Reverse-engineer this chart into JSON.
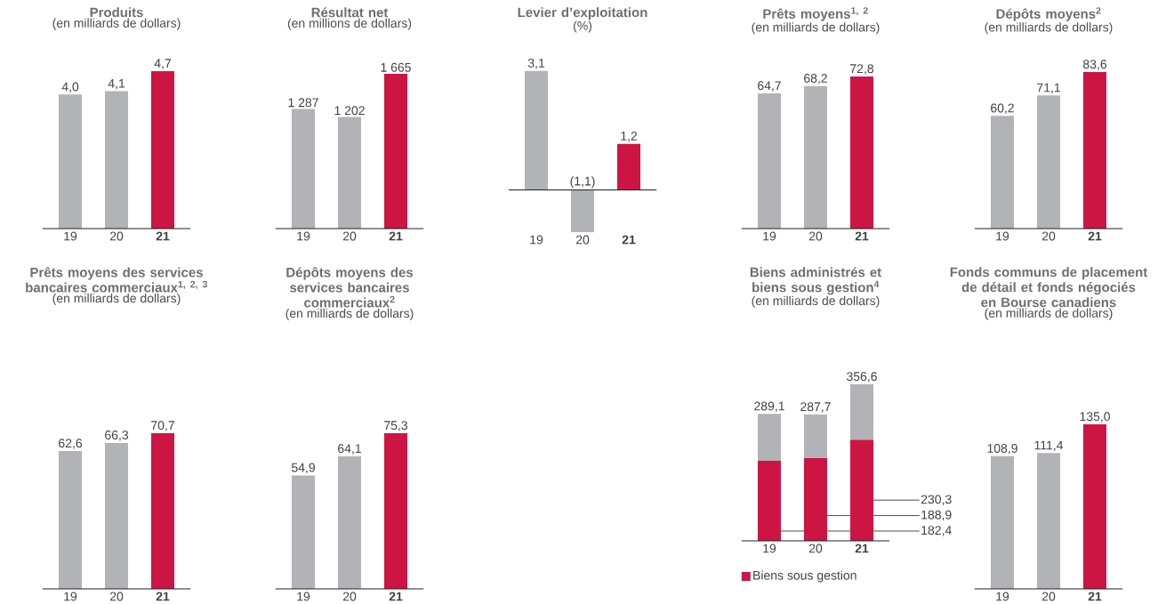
{
  "chart_data": [
    {
      "type": "bar",
      "title": "Produits",
      "subtitle": "(en milliards de dollars)",
      "categories": [
        "19",
        "20",
        "**21**"
      ],
      "values": [
        4.0,
        4.1,
        4.7
      ],
      "colors": [
        "#b1b3b6",
        "#b1b3b6",
        "#cc1543"
      ],
      "value_labels": [
        "4,0",
        "4,1",
        "4,7"
      ]
    },
    {
      "type": "bar",
      "title": "Résultat net",
      "subtitle": "(en millions de dollars)",
      "categories": [
        "19",
        "20",
        "**21**"
      ],
      "values": [
        1287,
        1202,
        1665
      ],
      "colors": [
        "#b1b3b6",
        "#b1b3b6",
        "#cc1543"
      ],
      "value_labels": [
        "1 287",
        "1 202",
        "1 665"
      ]
    },
    {
      "type": "bar",
      "title": "Levier d’exploitation",
      "subtitle": "(%)",
      "categories": [
        "19",
        "20",
        "**21**"
      ],
      "values": [
        3.1,
        -1.1,
        1.2
      ],
      "colors": [
        "#b1b3b6",
        "#b1b3b6",
        "#cc1543"
      ],
      "value_labels": [
        "3,1",
        "(1,1)",
        "1,2"
      ]
    },
    {
      "type": "bar",
      "title": "Prêts moyens$^{1, 2}$",
      "subtitle": "(en milliards de dollars)",
      "categories": [
        "19",
        "20",
        "**21**"
      ],
      "values": [
        64.7,
        68.2,
        72.8
      ],
      "colors": [
        "#b1b3b6",
        "#b1b3b6",
        "#cc1543"
      ],
      "value_labels": [
        "64,7",
        "68,2",
        "72,8"
      ]
    },
    {
      "type": "bar",
      "title": "Dépôts moyens$^{2}$",
      "subtitle": "(en milliards de dollars)",
      "categories": [
        "19",
        "20",
        "**21**"
      ],
      "values": [
        60.2,
        71.1,
        83.6
      ],
      "colors": [
        "#b1b3b6",
        "#b1b3b6",
        "#cc1543"
      ],
      "value_labels": [
        "60,2",
        "71,1",
        "83,6"
      ]
    },
    {
      "type": "bar",
      "title": "Prêts moyens des services bancaires commerciaux$^{1, 2, 3}$",
      "subtitle": "(en milliards de dollars)",
      "categories": [
        "19",
        "20",
        "**21**"
      ],
      "values": [
        62.6,
        66.3,
        70.7
      ],
      "colors": [
        "#b1b3b6",
        "#b1b3b6",
        "#cc1543"
      ],
      "value_labels": [
        "62,6",
        "66,3",
        "70,7"
      ]
    },
    {
      "type": "bar",
      "title": "Dépôts moyens des services bancaires commerciaux$^{2}$",
      "subtitle": "(en milliards de dollars)",
      "categories": [
        "19",
        "20",
        "**21**"
      ],
      "values": [
        54.9,
        64.1,
        75.3
      ],
      "colors": [
        "#b1b3b6",
        "#b1b3b6",
        "#cc1543"
      ],
      "value_labels": [
        "54,9",
        "64,1",
        "75,3"
      ]
    },
    {
      "type": "bar",
      "title": "Biens administrés et biens sous gestion$^{4}$",
      "subtitle": "(en milliards de dollars)",
      "categories": [
        "19",
        "20",
        "**21**"
      ],
      "stacked": true,
      "legend": "bottom",
      "totals": [
        "289,1",
        "287,7",
        "356,6"
      ],
      "series": [
        {
          "name": "Biens sous gestion",
          "color": "#cc1543",
          "values": [
            182.4,
            188.9,
            230.3
          ],
          "value_labels": [
            "182,4",
            "188,9",
            "230,3"
          ]
        },
        {
          "color": "#b1b3b6",
          "values": [
            106.7,
            98.8,
            126.3
          ]
        }
      ]
    },
    {
      "type": "bar",
      "title": "Fonds communs de placement de détail et fonds négociés en Bourse canadiens",
      "subtitle": "(en milliards de dollars)",
      "categories": [
        "19",
        "20",
        "**21**"
      ],
      "values": [
        108.9,
        111.4,
        135.0
      ],
      "colors": [
        "#b1b3b6",
        "#b1b3b6",
        "#cc1543"
      ],
      "value_labels": [
        "108,9",
        "111,4",
        "135,0"
      ]
    }
  ]
}
